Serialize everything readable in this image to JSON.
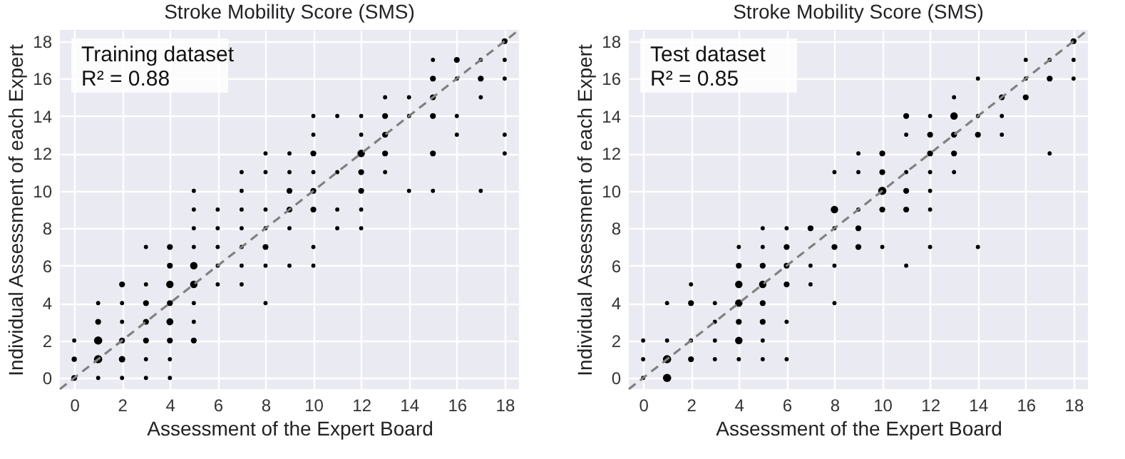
{
  "chart_data": [
    {
      "type": "bubble",
      "title": "Stroke Mobility Score (SMS)",
      "xlabel": "Assessment of the Expert Board",
      "ylabel": "Individual Assessment of each Expert",
      "annotations": [
        "Training dataset",
        "R² = 0.88"
      ],
      "xlim": [
        -0.6,
        18.6
      ],
      "ylim": [
        -0.6,
        18.6
      ],
      "xticks": [
        0,
        2,
        4,
        6,
        8,
        10,
        12,
        14,
        16,
        18
      ],
      "yticks": [
        0,
        2,
        4,
        6,
        8,
        10,
        12,
        14,
        16,
        18
      ],
      "grid": true,
      "series": [
        {
          "type": "bubble",
          "color": "#000000",
          "x": [
            0,
            0,
            0,
            1,
            1,
            1,
            1,
            1,
            2,
            2,
            2,
            2,
            2,
            2,
            3,
            3,
            3,
            3,
            3,
            3,
            3,
            4,
            4,
            4,
            4,
            4,
            4,
            4,
            4,
            5,
            5,
            5,
            5,
            5,
            5,
            5,
            5,
            5,
            6,
            6,
            6,
            6,
            6,
            7,
            7,
            7,
            7,
            7,
            7,
            7,
            8,
            8,
            8,
            8,
            8,
            8,
            8,
            9,
            9,
            9,
            9,
            9,
            9,
            10,
            10,
            10,
            10,
            10,
            10,
            10,
            10,
            11,
            11,
            11,
            11,
            12,
            12,
            12,
            12,
            12,
            12,
            12,
            13,
            13,
            13,
            13,
            13,
            14,
            14,
            14,
            15,
            15,
            15,
            15,
            15,
            15,
            16,
            16,
            16,
            16,
            17,
            17,
            17,
            17,
            18,
            18,
            18,
            18,
            18
          ],
          "values": [
            0,
            1,
            2,
            0,
            1,
            2,
            3,
            4,
            0,
            1,
            2,
            3,
            4,
            5,
            0,
            1,
            2,
            3,
            4,
            5,
            7,
            0,
            1,
            2,
            3,
            4,
            5,
            6,
            7,
            2,
            3,
            4,
            5,
            6,
            7,
            8,
            9,
            10,
            5,
            6,
            7,
            8,
            9,
            5,
            6,
            7,
            8,
            9,
            10,
            11,
            4,
            6,
            7,
            8,
            9,
            11,
            12,
            6,
            8,
            9,
            10,
            11,
            12,
            6,
            7,
            9,
            10,
            11,
            12,
            13,
            14,
            8,
            9,
            11,
            14,
            8,
            9,
            10,
            11,
            12,
            13,
            14,
            11,
            12,
            13,
            14,
            15,
            10,
            14,
            15,
            10,
            12,
            14,
            15,
            16,
            17,
            13,
            14,
            16,
            17,
            10,
            15,
            16,
            17,
            12,
            13,
            16,
            17,
            18
          ],
          "sizes": [
            0.5,
            0.4,
            0.25,
            0.25,
            1,
            1,
            0.5,
            0.25,
            0.25,
            0.6,
            0.5,
            0.25,
            0.25,
            0.5,
            0.25,
            0.25,
            0.5,
            0.5,
            0.5,
            0.25,
            0.25,
            0.25,
            0.25,
            0.5,
            0.7,
            0.5,
            0.8,
            0.5,
            0.5,
            0.5,
            0.25,
            0.25,
            0.8,
            0.8,
            0.25,
            0.25,
            0.25,
            0.25,
            0.25,
            0.25,
            0.25,
            0.25,
            0.25,
            0.25,
            0.25,
            0.25,
            0.25,
            0.25,
            0.25,
            0.25,
            0.25,
            0.25,
            0.5,
            0.25,
            0.25,
            0.25,
            0.25,
            0.25,
            0.25,
            0.5,
            0.5,
            0.25,
            0.25,
            0.25,
            0.25,
            0.5,
            0.5,
            0.25,
            0.5,
            0.25,
            0.25,
            0.25,
            0.25,
            0.25,
            0.25,
            0.25,
            0.25,
            0.5,
            0.5,
            0.8,
            0.25,
            0.25,
            0.25,
            0.5,
            0.5,
            0.5,
            0.25,
            0.25,
            0.25,
            0.25,
            0.25,
            0.5,
            0.5,
            0.5,
            0.5,
            0.25,
            0.25,
            0.25,
            0.25,
            0.5,
            0.25,
            0.25,
            0.5,
            0.25,
            0.25,
            0.25,
            0.25,
            0.25,
            0.5
          ]
        },
        {
          "type": "line",
          "color": "#808080",
          "line_style": "dashed",
          "x": [
            -0.6,
            18.6
          ],
          "values": [
            -0.6,
            18.6
          ]
        }
      ]
    },
    {
      "type": "bubble",
      "title": "Stroke Mobility Score (SMS)",
      "xlabel": "Assessment of the Expert Board",
      "ylabel": "Individual Assessment of each Expert",
      "annotations": [
        "Test dataset",
        "R² = 0.85"
      ],
      "xlim": [
        -0.6,
        18.6
      ],
      "ylim": [
        -0.6,
        18.6
      ],
      "xticks": [
        0,
        2,
        4,
        6,
        8,
        10,
        12,
        14,
        16,
        18
      ],
      "yticks": [
        0,
        2,
        4,
        6,
        8,
        10,
        12,
        14,
        16,
        18
      ],
      "grid": true,
      "series": [
        {
          "type": "bubble",
          "color": "#000000",
          "x": [
            0,
            0,
            0,
            1,
            1,
            1,
            1,
            2,
            2,
            2,
            2,
            3,
            3,
            3,
            3,
            4,
            4,
            4,
            4,
            4,
            4,
            4,
            5,
            5,
            5,
            5,
            5,
            5,
            5,
            5,
            6,
            6,
            6,
            6,
            6,
            6,
            7,
            7,
            7,
            8,
            8,
            8,
            8,
            8,
            8,
            9,
            9,
            9,
            9,
            9,
            10,
            10,
            10,
            10,
            10,
            11,
            11,
            11,
            11,
            11,
            11,
            12,
            12,
            12,
            12,
            12,
            12,
            12,
            13,
            13,
            13,
            13,
            13,
            14,
            14,
            14,
            14,
            15,
            15,
            15,
            16,
            16,
            16,
            17,
            17,
            17,
            18,
            18,
            18
          ],
          "values": [
            0,
            1,
            2,
            0,
            1,
            2,
            4,
            1,
            2,
            4,
            5,
            1,
            2,
            3,
            4,
            1,
            2,
            3,
            4,
            5,
            6,
            7,
            1,
            2,
            3,
            4,
            5,
            6,
            7,
            8,
            1,
            3,
            5,
            6,
            7,
            8,
            5,
            6,
            8,
            4,
            6,
            7,
            8,
            9,
            11,
            7,
            8,
            9,
            11,
            12,
            7,
            9,
            10,
            11,
            12,
            6,
            9,
            10,
            11,
            13,
            14,
            7,
            9,
            10,
            11,
            12,
            13,
            14,
            11,
            12,
            13,
            14,
            15,
            7,
            13,
            14,
            16,
            13,
            14,
            15,
            15,
            16,
            17,
            12,
            16,
            17,
            16,
            17,
            18
          ],
          "sizes": [
            0.25,
            0.25,
            0.25,
            1,
            1,
            0.25,
            0.25,
            0.5,
            0.25,
            0.5,
            0.25,
            0.25,
            0.25,
            0.25,
            0.25,
            0.25,
            0.8,
            0.5,
            0.8,
            0.8,
            0.5,
            0.25,
            0.25,
            0.25,
            0.5,
            0.5,
            0.8,
            0.5,
            0.25,
            0.25,
            0.25,
            0.25,
            0.5,
            0.5,
            0.5,
            0.25,
            0.25,
            0.25,
            0.5,
            0.25,
            0.25,
            0.5,
            0.25,
            0.8,
            0.25,
            0.5,
            0.5,
            0.25,
            0.25,
            0.25,
            0.25,
            0.5,
            1,
            0.5,
            0.5,
            0.25,
            0.5,
            0.5,
            0.25,
            0.25,
            0.5,
            0.25,
            0.25,
            0.25,
            0.25,
            0.5,
            0.5,
            0.25,
            0.25,
            0.5,
            0.5,
            0.8,
            0.25,
            0.25,
            0.5,
            0.25,
            0.25,
            0.25,
            0.25,
            0.5,
            0.5,
            0.25,
            0.25,
            0.25,
            0.5,
            0.25,
            0.25,
            0.25,
            0.5
          ]
        },
        {
          "type": "line",
          "color": "#808080",
          "line_style": "dashed",
          "x": [
            -0.6,
            18.6
          ],
          "values": [
            -0.6,
            18.6
          ]
        }
      ]
    }
  ]
}
